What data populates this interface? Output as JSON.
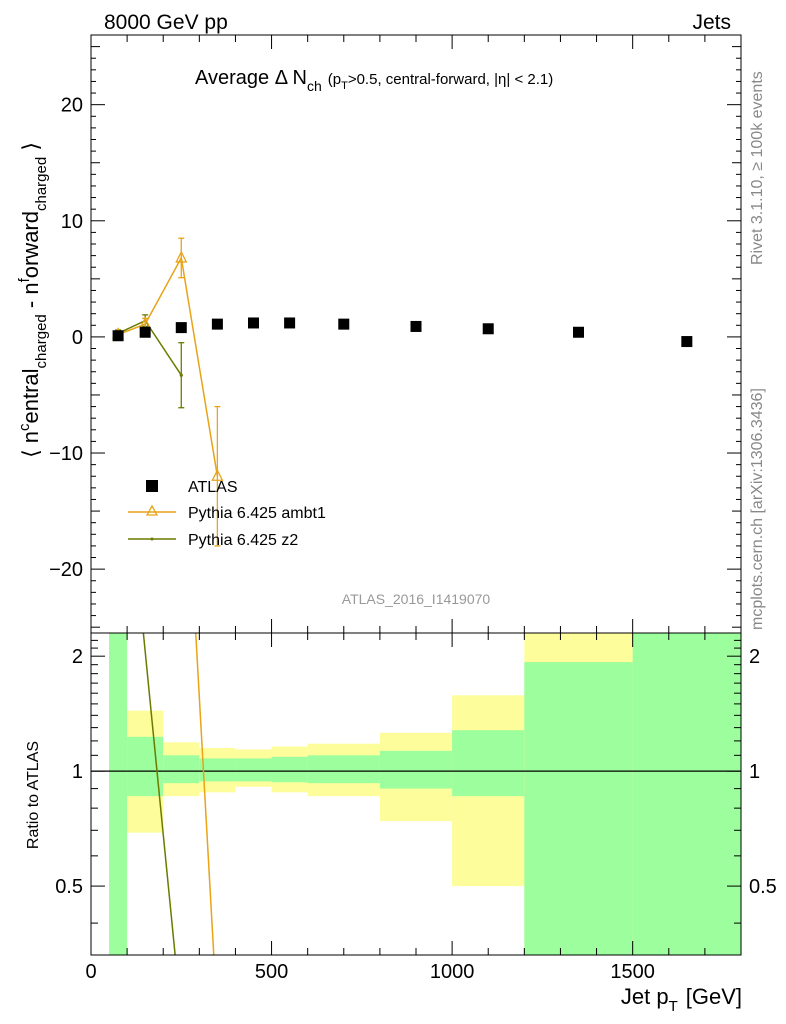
{
  "header": {
    "left": "8000 GeV pp",
    "right": "Jets"
  },
  "side": {
    "rivet": "Rivet 3.1.10, ≥ 100k events",
    "mcplots": "mcplots.cern.ch [arXiv:1306.3436]"
  },
  "analysis_id": "ATLAS_2016_I1419070",
  "colors": {
    "data": "#000000",
    "ambt1": "#e8a317",
    "z2": "#6b7a00",
    "band_green": "#9cfe9c",
    "band_yellow": "#fdfd9c"
  },
  "chart_data": [
    {
      "type": "scatter",
      "title_main": "Average Δ N",
      "title_sub": "ch",
      "title_rest": "(p",
      "title_rest_sub": "T",
      "title_rest2": ">0.5, central-forward, |η| < 2.1)",
      "ylabel": "⟨ n^central_charged - n^forward_charged ⟩",
      "xlim": [
        0,
        1800
      ],
      "ylim": [
        -25.5,
        26
      ],
      "yticks": [
        -20,
        -10,
        0,
        10,
        20
      ],
      "x_bin_edges": [
        50,
        100,
        200,
        300,
        400,
        500,
        600,
        800,
        1000,
        1200,
        1500,
        1800
      ],
      "series": [
        {
          "name": "ATLAS",
          "x": [
            75,
            150,
            250,
            350,
            450,
            550,
            700,
            900,
            1100,
            1350,
            1650
          ],
          "y": [
            0.1,
            0.4,
            0.8,
            1.1,
            1.2,
            1.2,
            1.1,
            0.9,
            0.7,
            0.4,
            -0.4
          ]
        },
        {
          "name": "Pythia 6.425 ambt1",
          "x": [
            75,
            150,
            250,
            350
          ],
          "y": [
            0.2,
            1.1,
            6.8,
            -12.0
          ],
          "yerr": [
            0.3,
            0.5,
            1.7,
            6.0
          ]
        },
        {
          "name": "Pythia 6.425 z2",
          "x": [
            75,
            150,
            250
          ],
          "y": [
            0.3,
            1.4,
            -3.3
          ],
          "yerr": [
            0.3,
            0.5,
            2.8
          ]
        }
      ]
    },
    {
      "type": "line",
      "ylabel": "Ratio to ATLAS",
      "xlabel": "Jet p_T [GeV]",
      "xlabel_main": "Jet p",
      "xlabel_sub": "T",
      "xlabel_unit": "[GeV]",
      "xlim": [
        0,
        1800
      ],
      "ylim": [
        0.33,
        2.3
      ],
      "xticks": [
        0,
        500,
        1000,
        1500
      ],
      "yticks": [
        0.5,
        1,
        2
      ],
      "bands": {
        "x_edges": [
          50,
          100,
          200,
          300,
          400,
          500,
          600,
          800,
          1000,
          1200,
          1500,
          1800
        ],
        "green_lo": [
          0.0,
          0.86,
          0.93,
          0.94,
          0.94,
          0.935,
          0.93,
          0.9,
          0.86,
          0.0,
          0.0
        ],
        "green_hi": [
          3.0,
          1.23,
          1.1,
          1.08,
          1.08,
          1.09,
          1.1,
          1.13,
          1.28,
          1.93,
          3.0
        ],
        "yellow_lo": [
          0.0,
          0.69,
          0.86,
          0.88,
          0.91,
          0.88,
          0.86,
          0.74,
          0.5,
          0.0,
          0.0
        ],
        "yellow_hi": [
          3.0,
          1.44,
          1.19,
          1.15,
          1.14,
          1.16,
          1.18,
          1.26,
          1.58,
          3.0,
          3.0
        ]
      },
      "series": [
        {
          "name": "Pythia 6.425 ambt1",
          "x": [
            290,
            340
          ],
          "y": [
            3.0,
            0.33
          ]
        },
        {
          "name": "Pythia 6.425 z2",
          "x": [
            145,
            233
          ],
          "y": [
            3.0,
            0.33
          ]
        }
      ]
    }
  ]
}
